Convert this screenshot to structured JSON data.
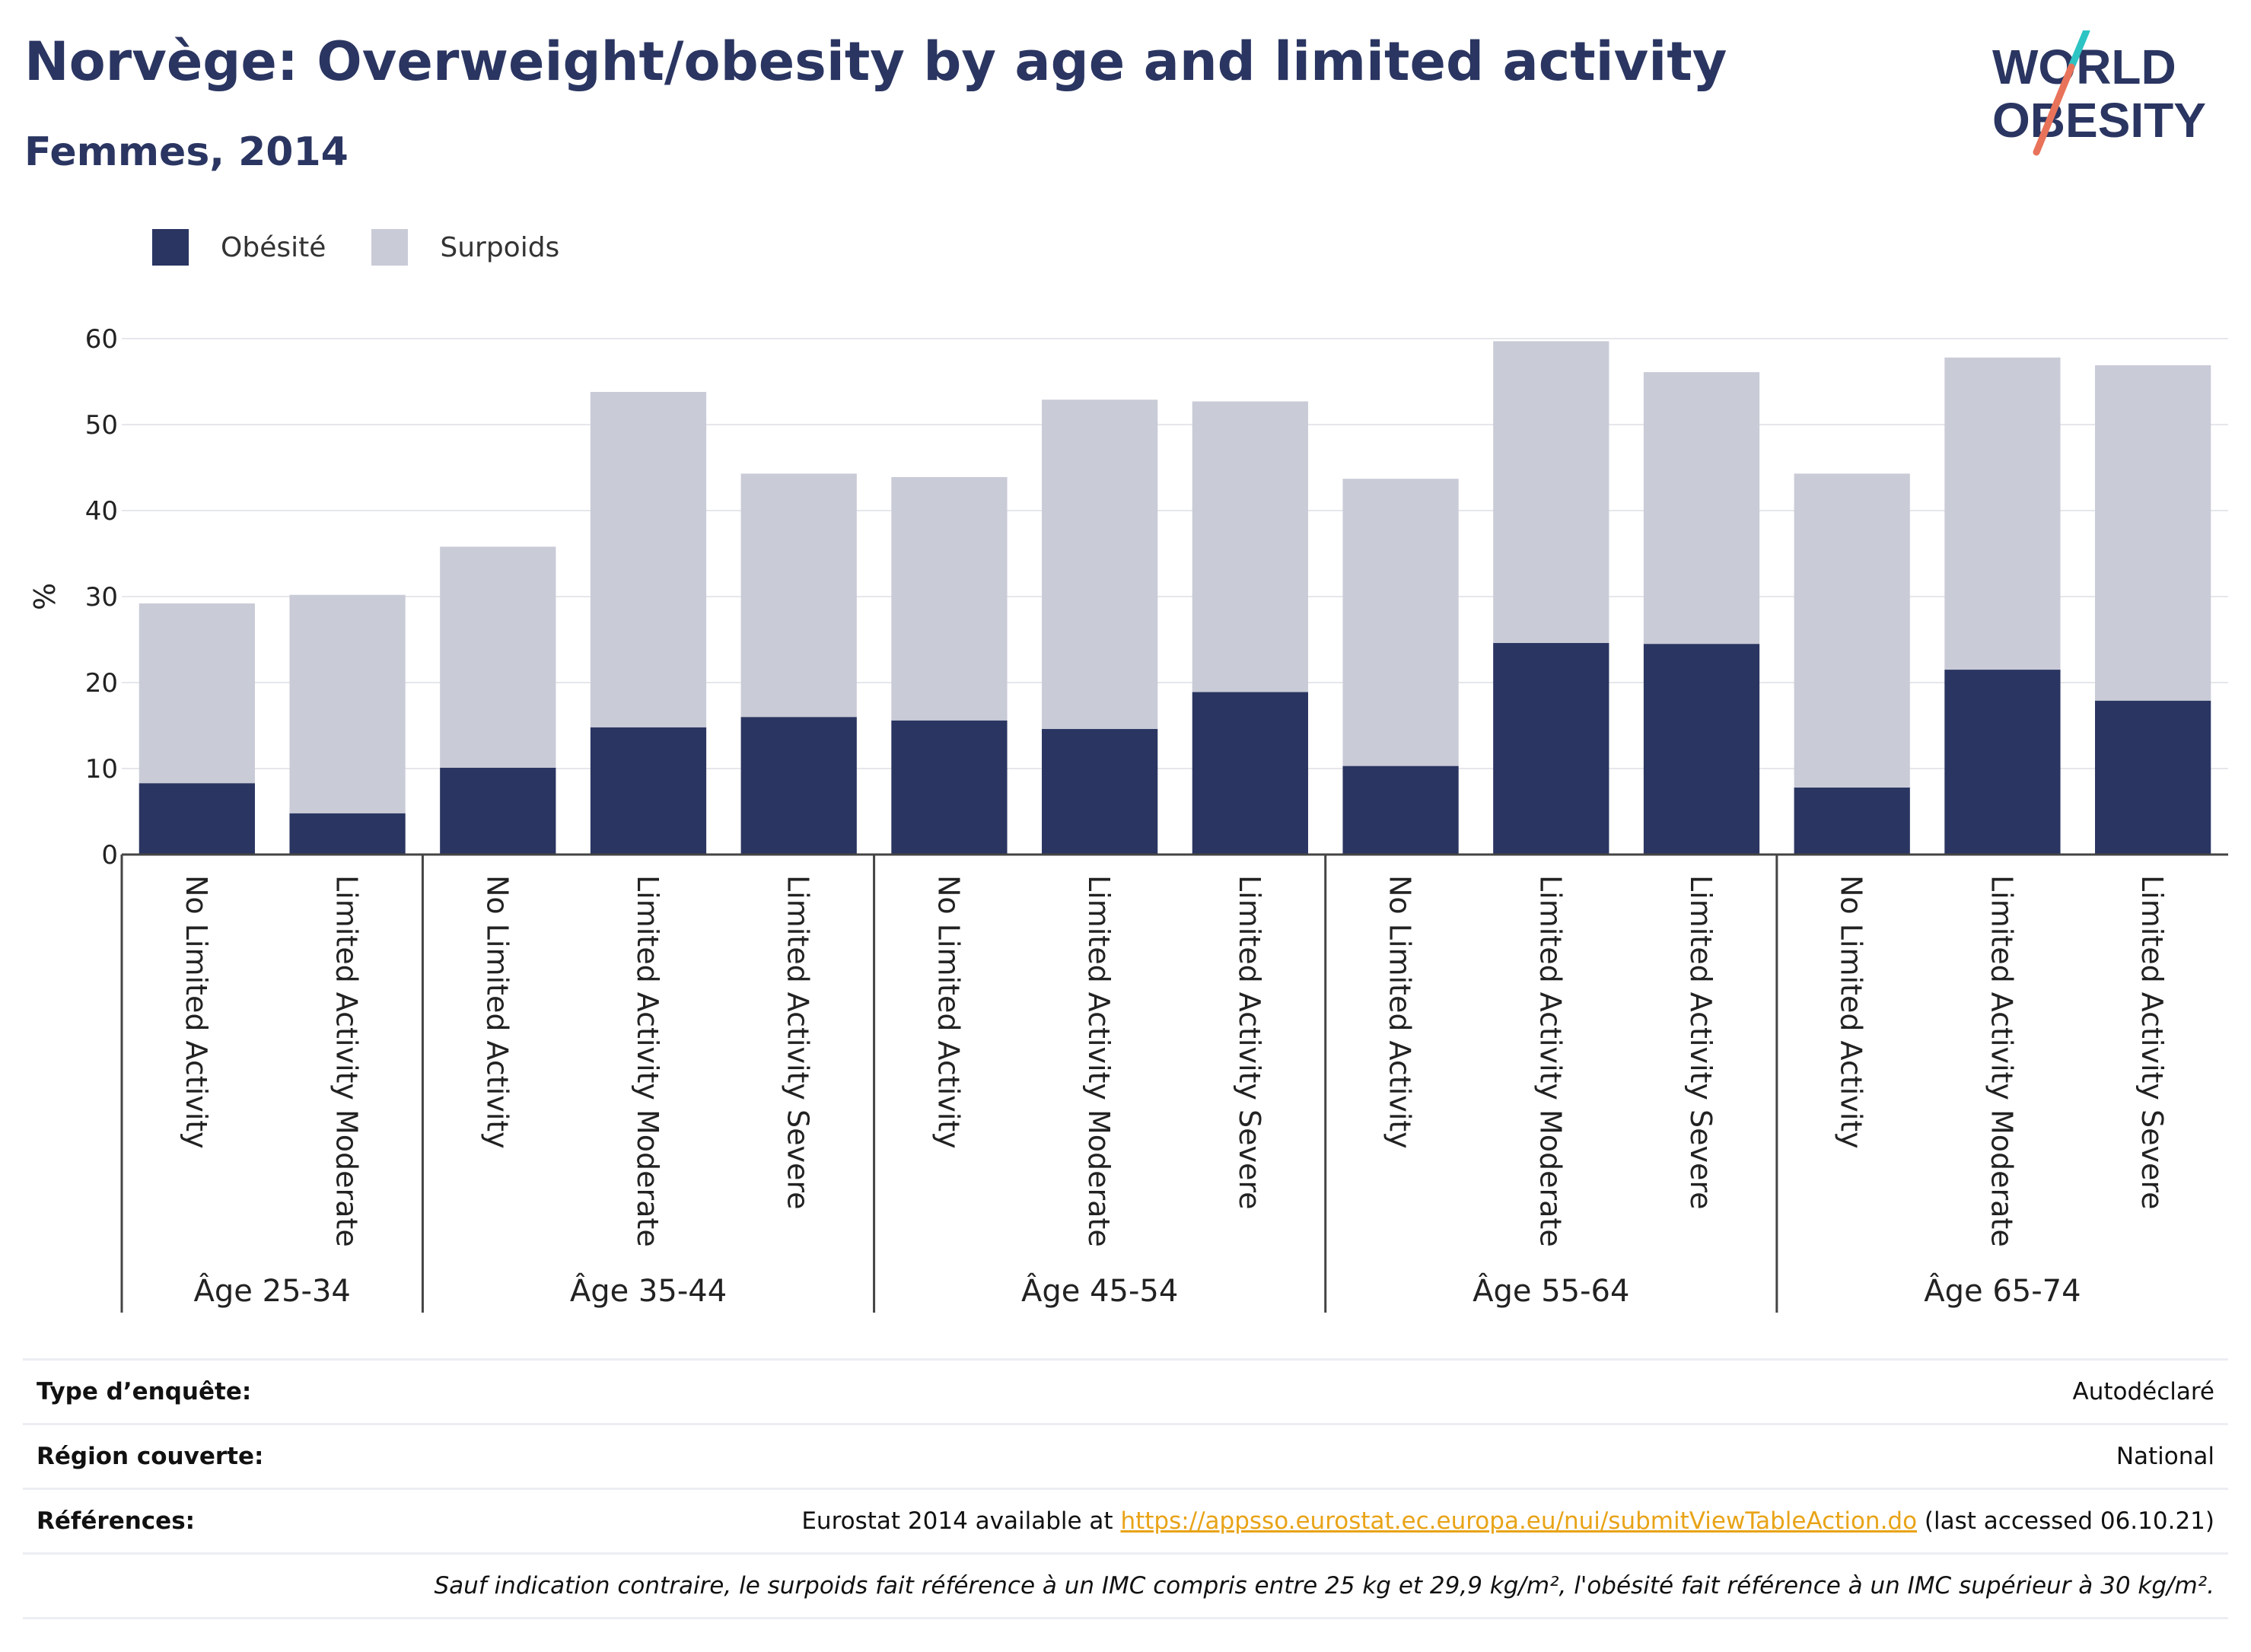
{
  "header": {
    "title": "Norvège: Overweight/obesity by age and limited activity",
    "subtitle": "Femmes, 2014"
  },
  "logo": {
    "line1": "WORLD",
    "line2": "OBESITY",
    "slash_colors": [
      "#2ec4c4",
      "#e8735a"
    ]
  },
  "legend": {
    "obesity_label": "Obésité",
    "overweight_label": "Surpoids"
  },
  "colors": {
    "obesity": "#2a3561",
    "overweight": "#c9cbd7",
    "accent_link": "#e8a317"
  },
  "chart_data": {
    "type": "bar",
    "stacked": true,
    "ylabel": "%",
    "ylim": [
      0,
      60
    ],
    "yticks": [
      0,
      10,
      20,
      30,
      40,
      50,
      60
    ],
    "grid": true,
    "legend_position": "top-left",
    "groups": [
      {
        "label": "Âge 25-34",
        "categories": [
          "No Limited Activity",
          "Limited Activity Moderate"
        ]
      },
      {
        "label": "Âge 35-44",
        "categories": [
          "No Limited Activity",
          "Limited Activity Moderate",
          "Limited Activity Severe"
        ]
      },
      {
        "label": "Âge 45-54",
        "categories": [
          "No Limited Activity",
          "Limited Activity Moderate",
          "Limited Activity Severe"
        ]
      },
      {
        "label": "Âge 55-64",
        "categories": [
          "No Limited Activity",
          "Limited Activity Moderate",
          "Limited Activity Severe"
        ]
      },
      {
        "label": "Âge 65-74",
        "categories": [
          "No Limited Activity",
          "Limited Activity Moderate",
          "Limited Activity Severe"
        ]
      }
    ],
    "series": [
      {
        "name": "Obésité",
        "values": [
          8.3,
          4.8,
          10.1,
          14.8,
          16.0,
          15.6,
          14.6,
          18.9,
          10.3,
          24.6,
          24.5,
          7.8,
          21.5,
          17.9
        ]
      },
      {
        "name": "Surpoids",
        "values": [
          20.9,
          25.4,
          25.7,
          39.0,
          28.3,
          28.3,
          38.3,
          33.8,
          33.4,
          35.1,
          31.6,
          36.5,
          36.3,
          39.0
        ]
      }
    ]
  },
  "info": {
    "survey_label": "Type d’enquête:",
    "survey_value": "Autodéclaré",
    "region_label": "Région couverte:",
    "region_value": "National",
    "ref_label": "Références:",
    "ref_prefix": "Eurostat 2014 available at ",
    "ref_link": "https://appsso.eurostat.ec.europa.eu/nui/submitViewTableAction.do",
    "ref_suffix": " (last accessed 06.10.21)",
    "note": "Sauf indication contraire, le surpoids fait référence à un IMC compris entre 25 kg et 29,9 kg/m², l'obésité fait référence à un IMC supérieur à 30 kg/m²."
  }
}
